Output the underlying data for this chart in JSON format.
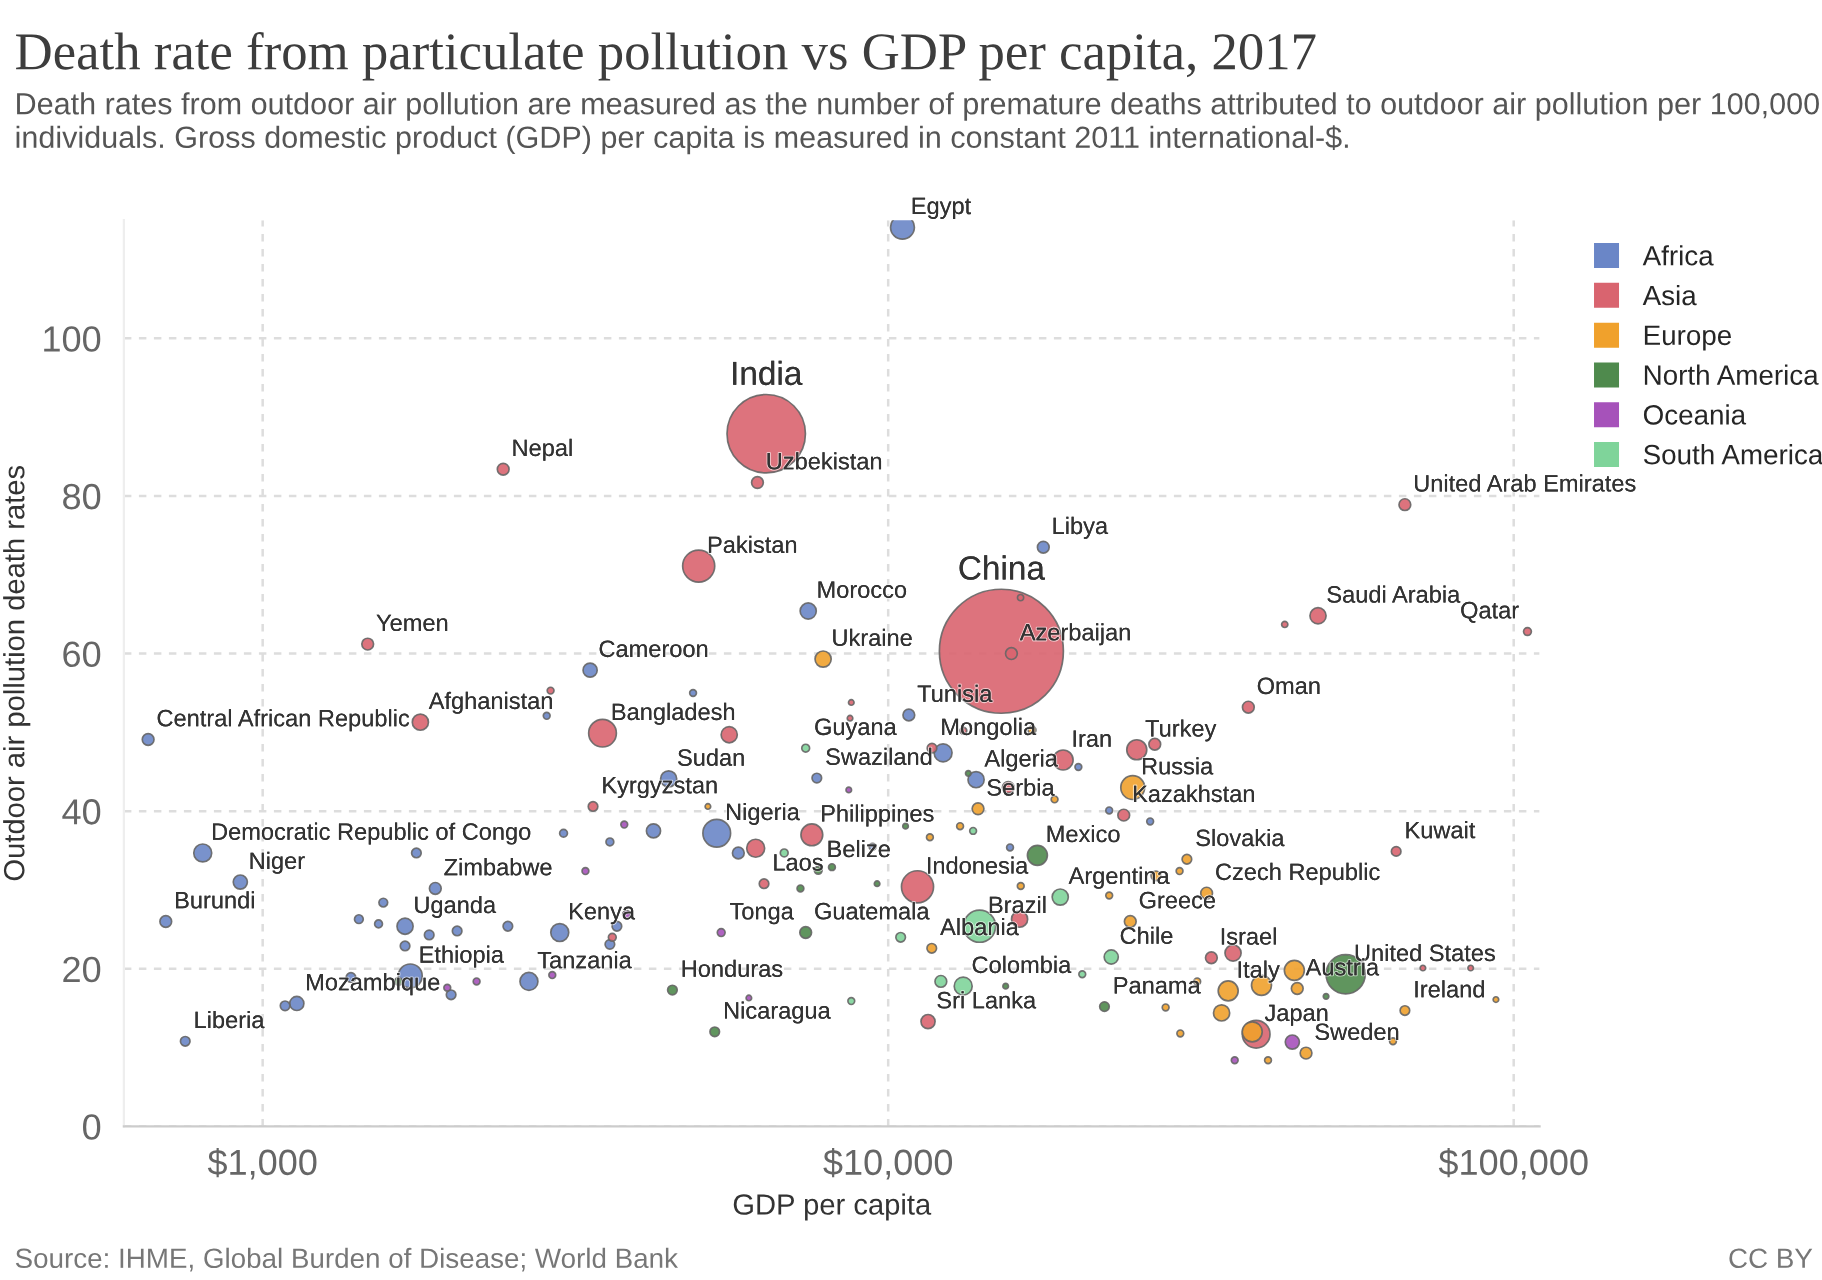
{
  "chart_data": {
    "type": "bubble",
    "title": "Death rate from particulate pollution vs GDP per capita, 2017",
    "subtitle": "Death rates from outdoor air pollution are measured as the number of premature deaths attributed to outdoor air pollution per 100,000 individuals. Gross domestic product (GDP) per capita is measured in constant 2011 international-$.",
    "xlabel": "GDP per capita",
    "ylabel": "Outdoor air pollution death rates",
    "log": "x",
    "grid": true,
    "legend": "right",
    "xlim": [
      600,
      110000
    ],
    "ylim": [
      0,
      115
    ],
    "xticks": [
      {
        "value": 1000,
        "label": "$1,000"
      },
      {
        "value": 10000,
        "label": "$10,000"
      },
      {
        "value": 100000,
        "label": "$100,000"
      }
    ],
    "yticks": [
      0,
      20,
      40,
      60,
      80,
      100
    ],
    "series": [
      {
        "name": "Africa",
        "color": "#6a86c7",
        "x": [
          10540,
          17700,
          7450,
          3338,
          656,
          4457,
          5320,
          802,
          921,
          700,
          1888,
          1689,
          2985,
          1722,
          2665,
          1134,
          752,
          10790,
          7690,
          13820,
          12240,
          4876,
          2845,
          5760,
          1761,
          3027,
          3590,
          4215,
          1559,
          1425,
          1532,
          1846,
          2046,
          2466,
          1689,
          3684,
          3590,
          2001,
          1384,
          1086,
          20140,
          22560,
          26230,
          15660,
          9440
        ],
        "values": [
          114.1,
          73.5,
          65.4,
          57.9,
          49.1,
          44.1,
          37.2,
          34.7,
          31.0,
          26.0,
          30.2,
          25.4,
          24.6,
          19.1,
          18.4,
          15.6,
          10.8,
          52.2,
          44.2,
          44.0,
          47.4,
          55.0,
          52.1,
          34.7,
          34.7,
          37.2,
          36.1,
          37.5,
          28.4,
          26.3,
          25.7,
          24.3,
          24.8,
          25.4,
          22.9,
          25.4,
          23.1,
          16.7,
          18.9,
          15.3,
          45.6,
          40.1,
          38.7,
          35.4,
          35.5
        ],
        "sizes": [
          0.037,
          0.009,
          0.017,
          0.013,
          0.009,
          0.017,
          0.05,
          0.021,
          0.013,
          0.009,
          0.009,
          0.017,
          0.021,
          0.037,
          0.021,
          0.013,
          0.006,
          0.009,
          0.006,
          0.017,
          0.021,
          0.003,
          0.003,
          0.009,
          0.006,
          0.004,
          0.004,
          0.013,
          0.005,
          0.005,
          0.004,
          0.006,
          0.006,
          0.006,
          0.006,
          0.006,
          0.006,
          0.006,
          0.006,
          0.006,
          0.003,
          0.003,
          0.003,
          0.003,
          0.003
        ]
      },
      {
        "name": "Asia",
        "color": "#d9646f",
        "x": [
          6383,
          15170,
          2424,
          6180,
          4978,
          1472,
          66990,
          15740,
          48660,
          105200,
          1787,
          3494,
          3374,
          7550,
          6332,
          11750,
          19040,
          24970,
          23800,
          37650,
          11140,
          11580,
          32860,
          38750,
          64880,
          43050,
          16280,
          5570,
          2886,
          6140,
          15560,
          26680,
          16220,
          35590,
          3622,
          71590,
          85350,
          8730,
          8690,
          13190
        ],
        "values": [
          87.9,
          60.3,
          83.4,
          81.7,
          71.1,
          61.2,
          78.9,
          60.0,
          64.8,
          62.8,
          51.3,
          49.9,
          40.6,
          37.0,
          30.8,
          48.0,
          46.5,
          47.8,
          39.5,
          53.2,
          30.4,
          13.3,
          21.4,
          11.7,
          34.9,
          63.7,
          67.1,
          49.7,
          55.3,
          35.3,
          43.0,
          48.5,
          26.3,
          22.0,
          24.0,
          20.1,
          20.1,
          53.8,
          51.8,
          50.2
        ],
        "sizes": [
          0.4,
          1,
          0.009,
          0.009,
          0.067,
          0.009,
          0.009,
          0.009,
          0.017,
          0.004,
          0.017,
          0.05,
          0.006,
          0.031,
          0.006,
          0.006,
          0.026,
          0.026,
          0.009,
          0.009,
          0.067,
          0.013,
          0.009,
          0.05,
          0.006,
          0.0025,
          0.0025,
          0.017,
          0.003,
          0.021,
          0.009,
          0.009,
          0.017,
          0.017,
          0.004,
          0.002,
          0.002,
          0.002,
          0.002,
          0.003
        ]
      },
      {
        "name": "Europe",
        "color": "#f0a12c",
        "x": [
          7870,
          24600,
          13920,
          11740,
          24380,
          30030,
          32290,
          34960,
          45080,
          67000,
          46560,
          5150,
          39520,
          44600,
          38190,
          34120,
          27770,
          29310,
          40480,
          31190,
          29230,
          26790,
          22560,
          18450,
          16980,
          13030,
          11660,
          16290,
          64120,
          93670
        ],
        "values": [
          59.3,
          43.0,
          40.3,
          22.6,
          26.0,
          33.9,
          29.6,
          17.2,
          17.5,
          14.7,
          9.3,
          40.6,
          17.9,
          19.8,
          12.0,
          14.4,
          15.1,
          11.8,
          8.4,
          18.4,
          32.4,
          31.8,
          29.3,
          41.5,
          50.3,
          38.1,
          36.7,
          30.5,
          10.8,
          16.1
        ],
        "sizes": [
          0.017,
          0.037,
          0.009,
          0.006,
          0.009,
          0.006,
          0.009,
          0.026,
          0.009,
          0.006,
          0.009,
          0.002,
          0.026,
          0.026,
          0.026,
          0.017,
          0.003,
          0.003,
          0.003,
          0.003,
          0.003,
          0.006,
          0.003,
          0.003,
          0.004,
          0.003,
          0.003,
          0.003,
          0.003,
          0.002
        ]
      },
      {
        "name": "North America",
        "color": "#4f8a4d",
        "x": [
          53870,
          17320,
          7381,
          4519,
          5281,
          7730,
          22170,
          7240,
          1649,
          13430,
          10660,
          8130,
          9600,
          50120,
          15410
        ],
        "values": [
          19.3,
          34.4,
          24.6,
          17.3,
          12.0,
          32.5,
          15.2,
          30.2,
          18.4,
          44.8,
          38.1,
          32.9,
          30.8,
          16.5,
          17.8
        ],
        "sizes": [
          0.1,
          0.026,
          0.009,
          0.006,
          0.006,
          0.004,
          0.006,
          0.003,
          0.004,
          0.002,
          0.002,
          0.003,
          0.002,
          0.002,
          0.002
        ]
      },
      {
        "name": "Oceania",
        "color": "#a652ba",
        "x": [
          5408,
          3785,
          3281,
          3818,
          2904,
          2198,
          1973,
          5988,
          8650,
          44270,
          35810
        ],
        "values": [
          24.6,
          38.3,
          32.4,
          26.9,
          19.2,
          18.4,
          17.6,
          16.3,
          42.7,
          10.7,
          8.4
        ],
        "sizes": [
          0.004,
          0.003,
          0.003,
          0.004,
          0.003,
          0.003,
          0.003,
          0.002,
          0.002,
          0.013,
          0.003
        ]
      },
      {
        "name": "South America",
        "color": "#7fd49a",
        "x": [
          7381,
          14000,
          18840,
          13180,
          22730,
          6820,
          12140,
          10470,
          13670,
          20430,
          8730
        ],
        "values": [
          48.0,
          25.4,
          29.1,
          17.8,
          21.5,
          34.7,
          18.4,
          24.0,
          37.5,
          19.3,
          15.9
        ],
        "sizes": [
          0.004,
          0.067,
          0.017,
          0.021,
          0.013,
          0.004,
          0.009,
          0.006,
          0.003,
          0.003,
          0.003
        ]
      }
    ],
    "annotations": [
      "Source: IHME, Global Burden of Disease; World Bank",
      "CC BY",
      {
        "text": "Egypt",
        "x": 10540,
        "y": 114.1
      },
      {
        "text": "India",
        "x": 6383,
        "y": 87.9
      },
      {
        "text": "China",
        "x": 15170,
        "y": 60.3
      },
      {
        "text": "Nepal",
        "x": 2424,
        "y": 83.4
      },
      {
        "text": "Uzbekistan",
        "x": 6180,
        "y": 81.7
      },
      {
        "text": "Pakistan",
        "x": 4978,
        "y": 71.1
      },
      {
        "text": "Yemen",
        "x": 1472,
        "y": 61.2
      },
      {
        "text": "Cameroon",
        "x": 3338,
        "y": 57.9
      },
      {
        "text": "Morocco",
        "x": 7450,
        "y": 65.4
      },
      {
        "text": "Ukraine",
        "x": 7870,
        "y": 59.3
      },
      {
        "text": "Libya",
        "x": 17700,
        "y": 73.5
      },
      {
        "text": "United Arab Emirates",
        "x": 66990,
        "y": 78.9
      },
      {
        "text": "Saudi Arabia",
        "x": 48660,
        "y": 64.8
      },
      {
        "text": "Qatar",
        "x": 105200,
        "y": 62.8
      },
      {
        "text": "Azerbaijan",
        "x": 15740,
        "y": 60.0
      },
      {
        "text": "Central African Republic",
        "x": 656,
        "y": 49.1
      },
      {
        "text": "Afghanistan",
        "x": 1787,
        "y": 51.3
      },
      {
        "text": "Bangladesh",
        "x": 3494,
        "y": 49.9
      },
      {
        "text": "Sudan",
        "x": 4457,
        "y": 44.1
      },
      {
        "text": "Kyrgyzstan",
        "x": 3374,
        "y": 40.6
      },
      {
        "text": "Nigeria",
        "x": 5320,
        "y": 37.2
      },
      {
        "text": "Philippines",
        "x": 7550,
        "y": 37.0
      },
      {
        "text": "Democratic Republic of Congo",
        "x": 802,
        "y": 34.7
      },
      {
        "text": "Niger",
        "x": 921,
        "y": 31.0
      },
      {
        "text": "Zimbabwe",
        "x": 1888,
        "y": 30.2
      },
      {
        "text": "Burundi",
        "x": 700,
        "y": 26.0
      },
      {
        "text": "Uganda",
        "x": 1689,
        "y": 25.4
      },
      {
        "text": "Kenya",
        "x": 2985,
        "y": 24.6
      },
      {
        "text": "Ethiopia",
        "x": 1722,
        "y": 19.1
      },
      {
        "text": "Tanzania",
        "x": 2665,
        "y": 18.4
      },
      {
        "text": "Mozambique",
        "x": 1134,
        "y": 15.6
      },
      {
        "text": "Liberia",
        "x": 752,
        "y": 10.8
      },
      {
        "text": "Honduras",
        "x": 4519,
        "y": 17.3
      },
      {
        "text": "Nicaragua",
        "x": 5281,
        "y": 12.0
      },
      {
        "text": "Tonga",
        "x": 5408,
        "y": 24.6
      },
      {
        "text": "Guatemala",
        "x": 7381,
        "y": 24.6
      },
      {
        "text": "Laos",
        "x": 6332,
        "y": 30.8
      },
      {
        "text": "Belize",
        "x": 7730,
        "y": 32.5
      },
      {
        "text": "Guyana",
        "x": 7381,
        "y": 48.0
      },
      {
        "text": "Swaziland",
        "x": 7690,
        "y": 44.2
      },
      {
        "text": "Tunisia",
        "x": 10790,
        "y": 52.2
      },
      {
        "text": "Mongolia",
        "x": 11750,
        "y": 48.0
      },
      {
        "text": "Algeria",
        "x": 13820,
        "y": 44.0
      },
      {
        "text": "Serbia",
        "x": 13920,
        "y": 40.3
      },
      {
        "text": "Iran",
        "x": 19040,
        "y": 46.5
      },
      {
        "text": "Turkey",
        "x": 24970,
        "y": 47.8
      },
      {
        "text": "Russia",
        "x": 24600,
        "y": 43.0
      },
      {
        "text": "Kazakhstan",
        "x": 23800,
        "y": 39.5
      },
      {
        "text": "Oman",
        "x": 37650,
        "y": 53.2
      },
      {
        "text": "Kuwait",
        "x": 64880,
        "y": 34.9
      },
      {
        "text": "Mexico",
        "x": 17320,
        "y": 34.4
      },
      {
        "text": "Indonesia",
        "x": 11140,
        "y": 30.4
      },
      {
        "text": "Brazil",
        "x": 14000,
        "y": 25.4
      },
      {
        "text": "Albania",
        "x": 11740,
        "y": 22.6
      },
      {
        "text": "Argentina",
        "x": 18840,
        "y": 29.1
      },
      {
        "text": "Slovakia",
        "x": 30030,
        "y": 33.9
      },
      {
        "text": "Czech Republic",
        "x": 32290,
        "y": 29.6
      },
      {
        "text": "Greece",
        "x": 24380,
        "y": 26.0
      },
      {
        "text": "Chile",
        "x": 22730,
        "y": 21.5
      },
      {
        "text": "Israel",
        "x": 32860,
        "y": 21.4
      },
      {
        "text": "United States",
        "x": 53870,
        "y": 19.3
      },
      {
        "text": "Italy",
        "x": 34960,
        "y": 17.2
      },
      {
        "text": "Austria",
        "x": 45080,
        "y": 17.5
      },
      {
        "text": "Ireland",
        "x": 67000,
        "y": 14.7
      },
      {
        "text": "Panama",
        "x": 22170,
        "y": 15.2
      },
      {
        "text": "Colombia",
        "x": 13180,
        "y": 17.8
      },
      {
        "text": "Sri Lanka",
        "x": 11580,
        "y": 13.3
      },
      {
        "text": "Japan",
        "x": 38750,
        "y": 11.7
      },
      {
        "text": "Sweden",
        "x": 46560,
        "y": 9.3
      }
    ]
  }
}
